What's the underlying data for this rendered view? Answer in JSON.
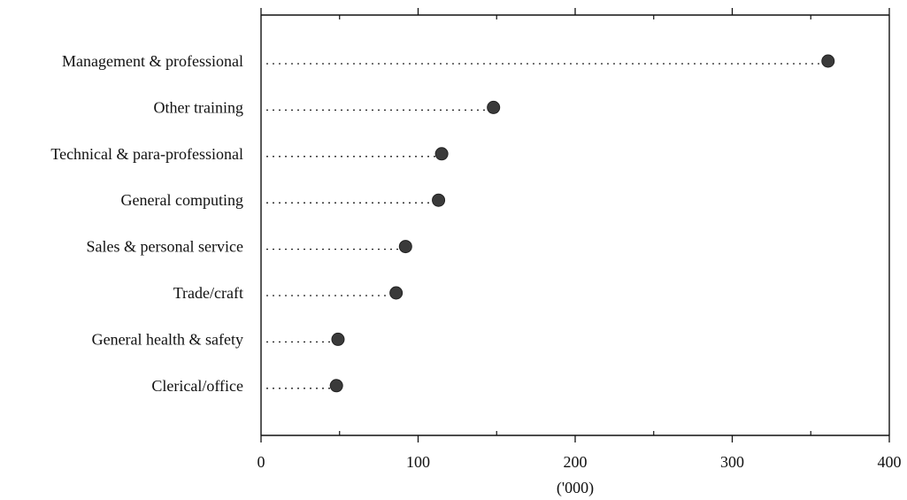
{
  "chart_data": {
    "type": "dot",
    "categories": [
      "Management & professional",
      "Other training",
      "Technical & para-professional",
      "General computing",
      "Sales & personal service",
      "Trade/craft",
      "General health & safety",
      "Clerical/office"
    ],
    "values": [
      361,
      148,
      115,
      113,
      92,
      86,
      49,
      48
    ],
    "xlabel": "('000)",
    "ylabel": "",
    "title": "",
    "xlim": [
      0,
      400
    ],
    "xticks": [
      0,
      100,
      200,
      300,
      400
    ],
    "xtick_labels": [
      "0",
      "100",
      "200",
      "300",
      "400"
    ],
    "grid": false,
    "dot_color": "#3a3a3a",
    "line_style": "dotted"
  }
}
